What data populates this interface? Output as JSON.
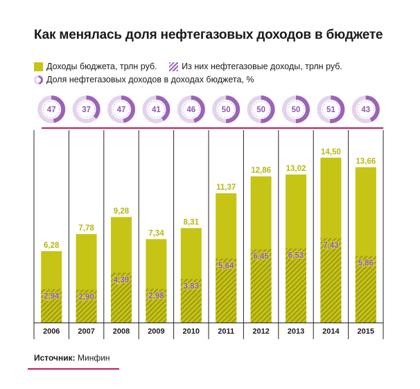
{
  "title": "Как менялась доля нефтегазовых доходов в бюджете",
  "legend": {
    "total": "Доходы бюджета, трлн руб.",
    "oil": "Из них нефтегазовые доходы, трлн руб.",
    "share": "Доля нефтегазовых доходов в доходах бюджета, %"
  },
  "source": {
    "label": "Источник:",
    "value": "Минфин"
  },
  "colors": {
    "total": "#c6c415",
    "oil_hatch": "#b4b21a",
    "share_fill": "#9a63b8",
    "share_track": "#e3d3ec",
    "accent_line": "#c2185b",
    "grid": "#222222"
  },
  "chart_data": {
    "type": "bar",
    "categories": [
      "2006",
      "2007",
      "2008",
      "2009",
      "2010",
      "2011",
      "2012",
      "2013",
      "2014",
      "2015"
    ],
    "series": [
      {
        "name": "Доходы бюджета, трлн руб.",
        "values": [
          6.28,
          7.78,
          9.28,
          7.34,
          8.31,
          11.37,
          12.86,
          13.02,
          14.5,
          13.66
        ],
        "labels": [
          "6,28",
          "7,78",
          "9,28",
          "7,34",
          "8,31",
          "11,37",
          "12,86",
          "13,02",
          "14,50",
          "13,66"
        ]
      },
      {
        "name": "Из них нефтегазовые доходы, трлн руб.",
        "values": [
          2.94,
          2.9,
          4.39,
          2.98,
          3.83,
          5.64,
          6.45,
          6.53,
          7.43,
          5.86
        ],
        "labels": [
          "2,94",
          "2,90",
          "4,39",
          "2,98",
          "3,83",
          "5,64",
          "6,45",
          "6,53",
          "7,43",
          "5,86"
        ]
      },
      {
        "name": "Доля нефтегазовых доходов в доходах бюджета, %",
        "values": [
          47,
          37,
          47,
          41,
          46,
          50,
          50,
          50,
          51,
          43
        ],
        "labels": [
          "47",
          "37",
          "47",
          "41",
          "46",
          "50",
          "50",
          "50",
          "51",
          "43"
        ]
      }
    ],
    "ylim": [
      0,
      15
    ]
  }
}
